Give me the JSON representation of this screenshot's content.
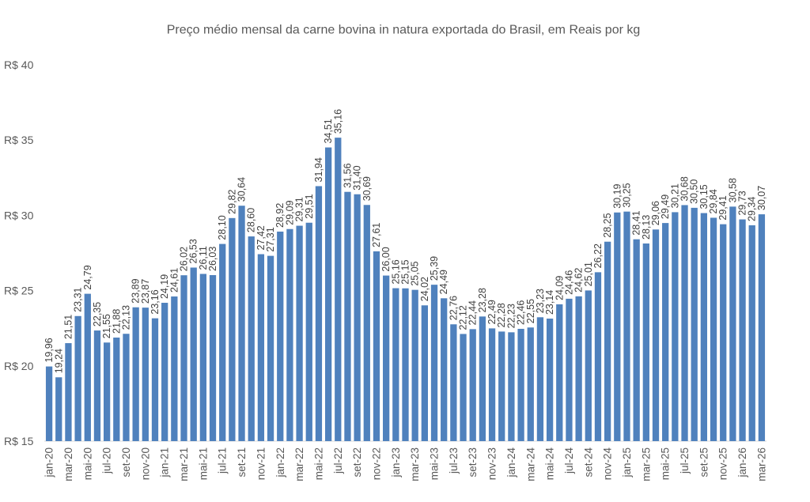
{
  "chart_data": {
    "type": "bar",
    "title": "Preço médio mensal da carne bovina in natura exportada do Brasil, em Reais por kg",
    "categories": [
      "jan-20",
      "",
      "mar-20",
      "",
      "mai-20",
      "",
      "jul-20",
      "",
      "set-20",
      "",
      "nov-20",
      "",
      "jan-21",
      "",
      "mar-21",
      "",
      "mai-21",
      "",
      "jul-21",
      "",
      "set-21",
      "",
      "nov-21",
      "",
      "jan-22",
      "",
      "mar-22",
      "",
      "mai-22",
      "",
      "jul-22",
      "",
      "set-22",
      "",
      "nov-22",
      "",
      "jan-23",
      "",
      "mar-23",
      "",
      "mai-23",
      "",
      "jul-23",
      "",
      "set-23",
      "",
      "nov-23",
      "",
      "jan-24",
      "",
      "mar-24",
      "",
      "mai-24",
      "",
      "jul-24",
      "",
      "set-24",
      "",
      "nov-24",
      "",
      "jan-25",
      "",
      "mar-25",
      "",
      "mai-25",
      "",
      "jul-25",
      "",
      "set-25",
      "",
      "nov-25",
      "",
      "jan-26",
      "",
      "mar-26"
    ],
    "values": [
      19.96,
      19.24,
      21.51,
      23.31,
      24.79,
      22.35,
      21.55,
      21.88,
      22.13,
      23.89,
      23.87,
      23.16,
      24.19,
      24.61,
      26.02,
      26.53,
      26.11,
      26.03,
      28.1,
      29.82,
      30.64,
      28.6,
      27.42,
      27.31,
      28.92,
      29.09,
      29.31,
      29.51,
      31.94,
      34.51,
      35.16,
      31.56,
      31.4,
      30.69,
      27.61,
      26.0,
      25.16,
      25.15,
      25.05,
      24.02,
      25.39,
      24.49,
      22.76,
      22.12,
      22.44,
      23.28,
      22.49,
      22.28,
      22.23,
      22.46,
      22.55,
      23.23,
      23.14,
      24.09,
      24.46,
      24.62,
      25.01,
      26.22,
      28.25,
      30.19,
      30.25,
      28.41,
      28.13,
      29.06,
      29.49,
      30.21,
      30.68,
      30.5,
      30.15,
      29.84,
      29.41,
      30.58,
      29.73,
      29.34,
      30.07
    ],
    "ylim": [
      15,
      40
    ],
    "y_ticks": [
      15,
      20,
      25,
      30,
      35,
      40
    ],
    "y_tick_labels": [
      "R$ 15",
      "R$ 20",
      "R$ 25",
      "R$ 30",
      "R$ 35",
      "R$ 40"
    ],
    "grid": false,
    "bar_color": "#4F81BD",
    "text_color": "#595959"
  }
}
